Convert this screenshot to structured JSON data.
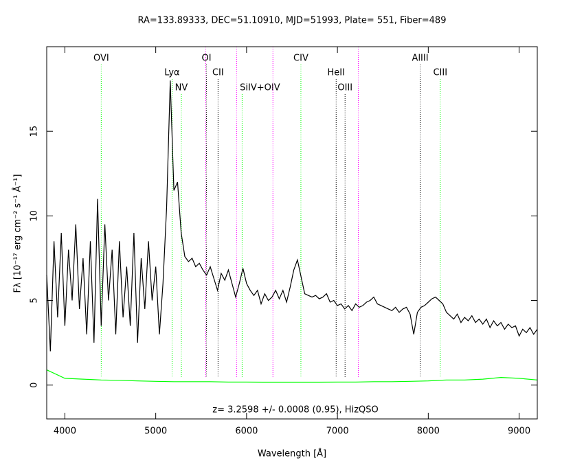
{
  "chart_data": {
    "type": "line",
    "title": "RA=133.89333, DEC=51.10910, MJD=51993, Plate=  551, Fiber=489",
    "xlabel": "Wavelength [Å]",
    "ylabel": "Fλ [10⁻¹⁷ erg cm⁻² s⁻¹ Å⁻¹]",
    "annotation": "z= 3.2598 +/- 0.0008 (0.95), HizQSO",
    "xlim": [
      3800,
      9200
    ],
    "ylim": [
      -2,
      20
    ],
    "xticks": [
      4000,
      5000,
      6000,
      7000,
      8000,
      9000
    ],
    "yticks": [
      0,
      5,
      10,
      15
    ],
    "series": [
      {
        "color": "#000000",
        "x": [
          3800,
          3840,
          3880,
          3920,
          3960,
          4000,
          4040,
          4080,
          4120,
          4160,
          4200,
          4240,
          4280,
          4320,
          4360,
          4400,
          4440,
          4480,
          4520,
          4560,
          4600,
          4640,
          4680,
          4720,
          4760,
          4800,
          4840,
          4880,
          4920,
          4960,
          5000,
          5040,
          5080,
          5120,
          5160,
          5200,
          5240,
          5280,
          5320,
          5360,
          5400,
          5440,
          5480,
          5520,
          5560,
          5600,
          5640,
          5680,
          5720,
          5760,
          5800,
          5840,
          5880,
          5920,
          5960,
          6000,
          6040,
          6080,
          6120,
          6160,
          6200,
          6240,
          6280,
          6320,
          6360,
          6400,
          6440,
          6480,
          6520,
          6560,
          6600,
          6640,
          6680,
          6720,
          6760,
          6800,
          6840,
          6880,
          6920,
          6960,
          7000,
          7040,
          7080,
          7120,
          7160,
          7200,
          7240,
          7280,
          7320,
          7360,
          7400,
          7440,
          7480,
          7520,
          7560,
          7600,
          7640,
          7680,
          7720,
          7760,
          7800,
          7840,
          7880,
          7920,
          7960,
          8000,
          8040,
          8080,
          8120,
          8160,
          8200,
          8240,
          8280,
          8320,
          8360,
          8400,
          8440,
          8480,
          8520,
          8560,
          8600,
          8640,
          8680,
          8720,
          8760,
          8800,
          8840,
          8880,
          8920,
          8960,
          9000,
          9040,
          9080,
          9120,
          9160,
          9200
        ],
        "values": [
          6.5,
          2.0,
          8.5,
          4.0,
          9.0,
          3.5,
          8.0,
          5.0,
          9.5,
          4.5,
          7.5,
          3.0,
          8.5,
          2.5,
          11.0,
          3.5,
          9.5,
          5.0,
          8.0,
          3.0,
          8.5,
          4.0,
          7.0,
          3.5,
          9.0,
          2.5,
          7.5,
          4.5,
          8.5,
          5.0,
          7.0,
          3.0,
          6.0,
          10.5,
          18.0,
          11.5,
          12.0,
          9.0,
          7.6,
          7.3,
          7.5,
          7.0,
          7.2,
          6.8,
          6.5,
          7.0,
          6.3,
          5.6,
          6.6,
          6.2,
          6.8,
          6.0,
          5.2,
          6.0,
          6.9,
          6.0,
          5.6,
          5.3,
          5.6,
          4.8,
          5.4,
          5.0,
          5.2,
          5.6,
          5.1,
          5.6,
          4.9,
          5.8,
          6.8,
          7.4,
          6.4,
          5.4,
          5.3,
          5.2,
          5.3,
          5.1,
          5.2,
          5.4,
          4.9,
          5.0,
          4.7,
          4.8,
          4.5,
          4.7,
          4.4,
          4.8,
          4.6,
          4.7,
          4.9,
          5.0,
          5.2,
          4.8,
          4.7,
          4.6,
          4.5,
          4.4,
          4.6,
          4.3,
          4.5,
          4.6,
          4.2,
          3.0,
          4.3,
          4.6,
          4.7,
          4.9,
          5.1,
          5.2,
          5.0,
          4.8,
          4.3,
          4.1,
          3.9,
          4.2,
          3.7,
          4.0,
          3.8,
          4.1,
          3.7,
          3.9,
          3.6,
          3.9,
          3.4,
          3.8,
          3.5,
          3.7,
          3.3,
          3.6,
          3.4,
          3.5,
          2.9,
          3.3,
          3.1,
          3.4,
          3.0,
          3.3
        ]
      },
      {
        "color": "#00ff00",
        "x": [
          3800,
          4000,
          4200,
          4400,
          4600,
          4800,
          5000,
          5200,
          5400,
          5600,
          5800,
          6000,
          6200,
          6400,
          6600,
          6800,
          7000,
          7200,
          7400,
          7600,
          7800,
          8000,
          8200,
          8400,
          8600,
          8800,
          9000,
          9200
        ],
        "values": [
          0.9,
          0.4,
          0.35,
          0.3,
          0.28,
          0.25,
          0.22,
          0.2,
          0.2,
          0.2,
          0.18,
          0.18,
          0.17,
          0.17,
          0.17,
          0.17,
          0.18,
          0.18,
          0.2,
          0.2,
          0.22,
          0.25,
          0.3,
          0.3,
          0.35,
          0.45,
          0.4,
          0.3
        ]
      }
    ],
    "lines": [
      {
        "wavelength": 4400,
        "label": "OVI",
        "color": "#00ff00"
      },
      {
        "wavelength": 5180,
        "label": "Lyα",
        "color": "#00ff00"
      },
      {
        "wavelength": 5282,
        "label": "NV",
        "color": "#00ff00"
      },
      {
        "wavelength": 5550,
        "color": "#ff00ff"
      },
      {
        "wavelength": 5559,
        "label": "OI",
        "color": "#000000"
      },
      {
        "wavelength": 5686,
        "label": "CII",
        "color": "#000000"
      },
      {
        "wavelength": 5890,
        "color": "#ff00ff"
      },
      {
        "wavelength": 5951,
        "label": "SiIV+OIV",
        "color": "#00ff00"
      },
      {
        "wavelength": 6290,
        "color": "#ff00ff"
      },
      {
        "wavelength": 6598,
        "label": "CIV",
        "color": "#00ff00"
      },
      {
        "wavelength": 6986,
        "label": "HeII",
        "color": "#000000"
      },
      {
        "wavelength": 7084,
        "label": "OIII",
        "color": "#000000"
      },
      {
        "wavelength": 7230,
        "color": "#ff00ff"
      },
      {
        "wavelength": 7911,
        "label": "AlIII",
        "color": "#000000"
      },
      {
        "wavelength": 8132,
        "label": "CIII",
        "color": "#00ff00"
      }
    ]
  }
}
